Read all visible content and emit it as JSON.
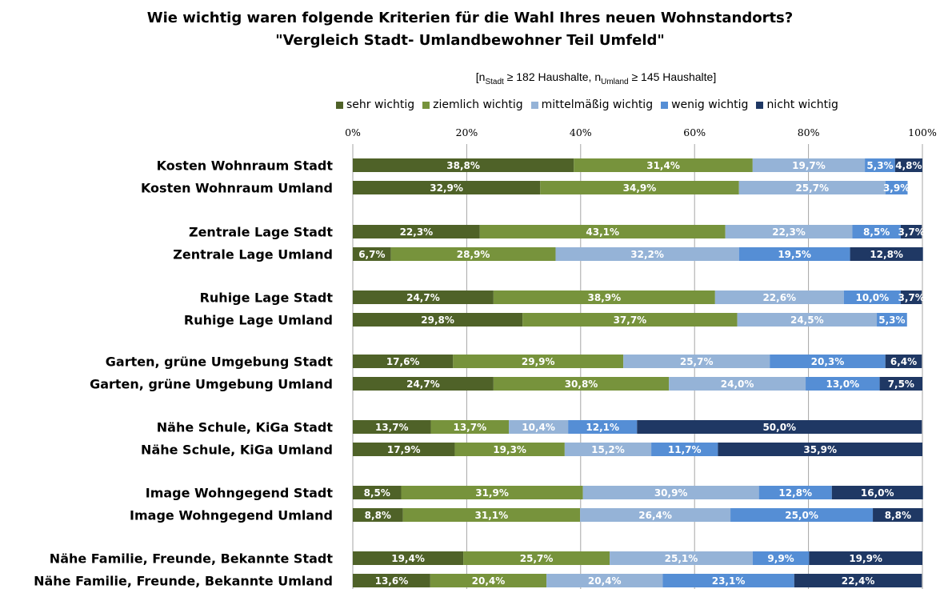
{
  "chart_data": {
    "type": "bar",
    "orientation": "horizontal",
    "stacked": true,
    "title": "Wie wichtig waren folgende Kriterien für die Wahl Ihres neuen Wohnstandorts?",
    "subtitle": "\"Vergleich Stadt- Umlandbewohner Teil Umfeld\"",
    "note": {
      "prefix": "[n",
      "sub1": "Stadt",
      "mid": " ≥ 182 Haushalte, n",
      "sub2": "Umland",
      "suffix": " ≥ 145 Haushalte]"
    },
    "xlim": [
      0,
      100
    ],
    "xticks": [
      "0%",
      "20%",
      "40%",
      "60%",
      "80%",
      "100%"
    ],
    "grid": true,
    "legend_position": "top",
    "categories": [
      "Kosten Wohnraum  Stadt",
      "Kosten Wohnraum  Umland",
      "Zentrale Lage Stadt",
      "Zentrale Lage Umland",
      "Ruhige Lage Stadt",
      "Ruhige Lage Umland",
      "Garten, grüne Umgebung Stadt",
      "Garten, grüne Umgebung Umland",
      "Nähe Schule, KiGa Stadt",
      "Nähe Schule, KiGa Umland",
      "Image Wohngegend Stadt",
      "Image Wohngegend Umland",
      "Nähe Familie, Freunde, Bekannte Stadt",
      "Nähe Familie, Freunde, Bekannte Umland"
    ],
    "series": [
      {
        "name": "sehr wichtig",
        "color": "#4f6228",
        "values": [
          38.8,
          32.9,
          22.3,
          6.7,
          24.7,
          29.8,
          17.6,
          24.7,
          13.7,
          17.9,
          8.5,
          8.8,
          19.4,
          13.6
        ],
        "labels": [
          "38,8%",
          "32,9%",
          "22,3%",
          "6,7%",
          "24,7%",
          "29,8%",
          "17,6%",
          "24,7%",
          "13,7%",
          "17,9%",
          "8,5%",
          "8,8%",
          "19,4%",
          "13,6%"
        ]
      },
      {
        "name": "ziemlich wichtig",
        "color": "#77933c",
        "values": [
          31.4,
          34.9,
          43.1,
          28.9,
          38.9,
          37.7,
          29.9,
          30.8,
          13.7,
          19.3,
          31.9,
          31.1,
          25.7,
          20.4
        ],
        "labels": [
          "31,4%",
          "34,9%",
          "43,1%",
          "28,9%",
          "38,9%",
          "37,7%",
          "29,9%",
          "30,8%",
          "13,7%",
          "19,3%",
          "31,9%",
          "31,1%",
          "25,7%",
          "20,4%"
        ]
      },
      {
        "name": "mittelmäßig wichtig",
        "color": "#95b3d7",
        "values": [
          19.7,
          25.7,
          22.3,
          32.2,
          22.6,
          24.5,
          25.7,
          24.0,
          10.4,
          15.2,
          30.9,
          26.4,
          25.1,
          20.4
        ],
        "labels": [
          "19,7%",
          "25,7%",
          "22,3%",
          "32,2%",
          "22,6%",
          "24,5%",
          "25,7%",
          "24,0%",
          "10,4%",
          "15,2%",
          "30,9%",
          "26,4%",
          "25,1%",
          "20,4%"
        ]
      },
      {
        "name": "wenig wichtig",
        "color": "#558ed5",
        "values": [
          5.3,
          3.9,
          8.5,
          19.5,
          10.0,
          5.3,
          20.3,
          13.0,
          12.1,
          11.7,
          12.8,
          25.0,
          9.9,
          23.1
        ],
        "labels": [
          "5,3%",
          "3,9%",
          "8,5%",
          "19,5%",
          "10,0%",
          "5,3%",
          "20,3%",
          "13,0%",
          "12,1%",
          "11,7%",
          "12,8%",
          "25,0%",
          "9,9%",
          "23,1%"
        ]
      },
      {
        "name": "nicht wichtig",
        "color": "#1f3864",
        "values": [
          4.8,
          0,
          3.7,
          12.8,
          3.7,
          0,
          6.4,
          7.5,
          50.0,
          35.9,
          16.0,
          8.8,
          19.9,
          22.4
        ],
        "labels": [
          "4,8%",
          "",
          "3,7%",
          "12,8%",
          "3,7%",
          "",
          "6,4%",
          "7,5%",
          "50,0%",
          "35,9%",
          "16,0%",
          "8,8%",
          "19,9%",
          "22,4%"
        ]
      }
    ]
  }
}
